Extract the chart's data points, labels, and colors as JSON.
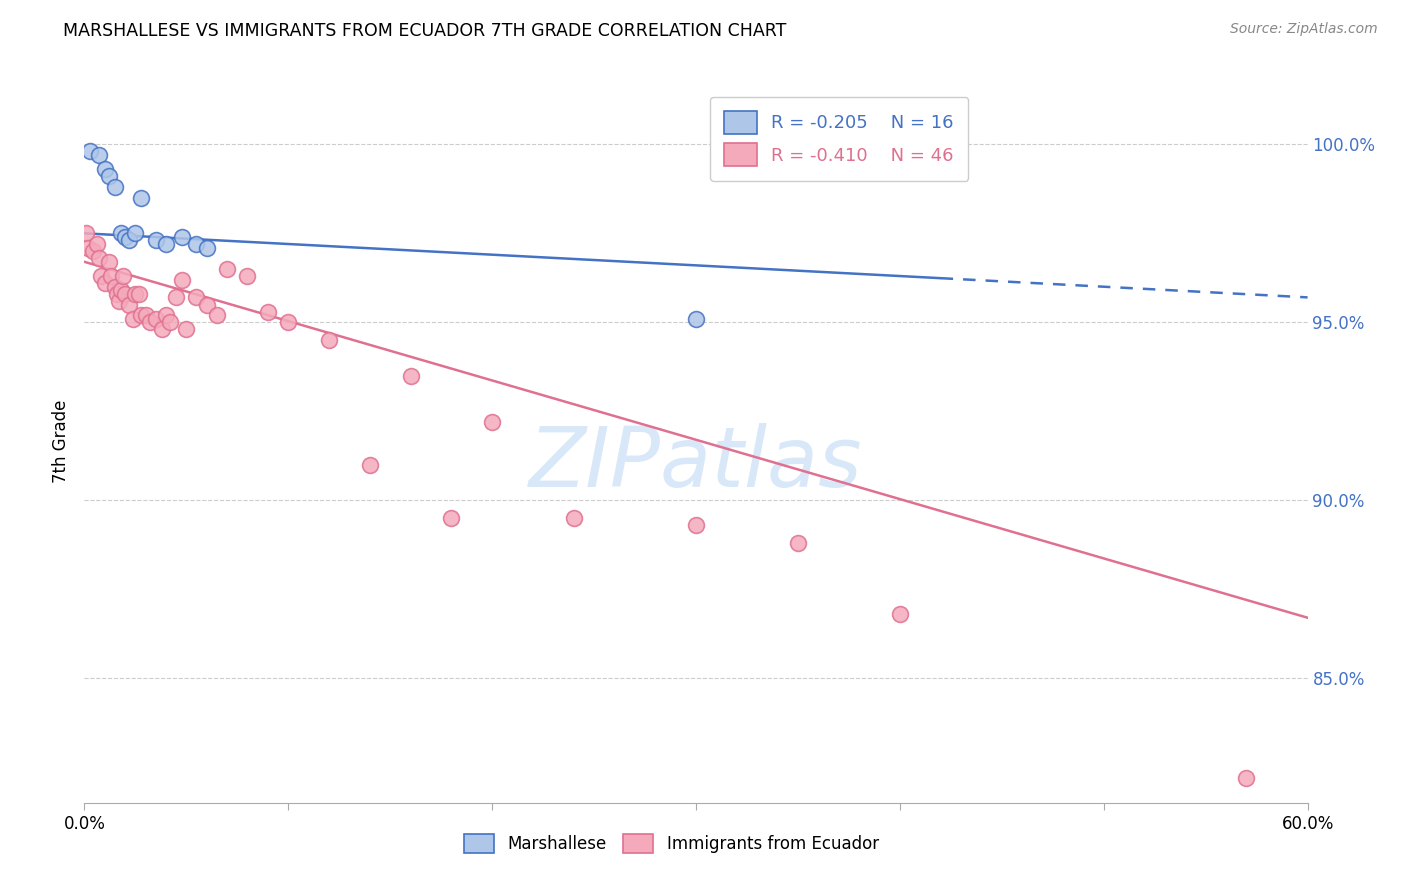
{
  "title": "MARSHALLESE VS IMMIGRANTS FROM ECUADOR 7TH GRADE CORRELATION CHART",
  "source": "Source: ZipAtlas.com",
  "ylabel": "7th Grade",
  "xmin": 0.0,
  "xmax": 0.6,
  "ymin": 0.815,
  "ymax": 1.018,
  "yticks": [
    0.85,
    0.9,
    0.95,
    1.0
  ],
  "ytick_labels": [
    "85.0%",
    "90.0%",
    "95.0%",
    "100.0%"
  ],
  "blue_R": "-0.205",
  "blue_N": "16",
  "pink_R": "-0.410",
  "pink_N": "46",
  "blue_scatter_x": [
    0.003,
    0.007,
    0.01,
    0.012,
    0.015,
    0.018,
    0.02,
    0.022,
    0.025,
    0.028,
    0.035,
    0.04,
    0.048,
    0.055,
    0.06,
    0.3
  ],
  "blue_scatter_y": [
    0.998,
    0.997,
    0.993,
    0.991,
    0.988,
    0.975,
    0.974,
    0.973,
    0.975,
    0.985,
    0.973,
    0.972,
    0.974,
    0.972,
    0.971,
    0.951
  ],
  "blue_line_x": [
    0.0,
    0.6
  ],
  "blue_line_y": [
    0.975,
    0.957
  ],
  "blue_line_solid_end": 0.42,
  "pink_scatter_x": [
    0.001,
    0.002,
    0.004,
    0.006,
    0.007,
    0.008,
    0.01,
    0.012,
    0.013,
    0.015,
    0.016,
    0.017,
    0.018,
    0.019,
    0.02,
    0.022,
    0.024,
    0.025,
    0.027,
    0.028,
    0.03,
    0.032,
    0.035,
    0.038,
    0.04,
    0.042,
    0.045,
    0.048,
    0.05,
    0.055,
    0.06,
    0.065,
    0.07,
    0.08,
    0.09,
    0.1,
    0.12,
    0.14,
    0.16,
    0.18,
    0.2,
    0.24,
    0.3,
    0.35,
    0.4,
    0.57
  ],
  "pink_scatter_y": [
    0.975,
    0.971,
    0.97,
    0.972,
    0.968,
    0.963,
    0.961,
    0.967,
    0.963,
    0.96,
    0.958,
    0.956,
    0.959,
    0.963,
    0.958,
    0.955,
    0.951,
    0.958,
    0.958,
    0.952,
    0.952,
    0.95,
    0.951,
    0.948,
    0.952,
    0.95,
    0.957,
    0.962,
    0.948,
    0.957,
    0.955,
    0.952,
    0.965,
    0.963,
    0.953,
    0.95,
    0.945,
    0.91,
    0.935,
    0.895,
    0.922,
    0.895,
    0.893,
    0.888,
    0.868,
    0.822
  ],
  "pink_line_x": [
    0.0,
    0.6
  ],
  "pink_line_y": [
    0.967,
    0.867
  ],
  "blue_color": "#AEC6E8",
  "pink_color": "#F4AABB",
  "blue_edge_color": "#4472C4",
  "pink_edge_color": "#E07090",
  "blue_line_color": "#4472C4",
  "pink_line_color": "#E07090",
  "watermark_text": "ZIPatlas",
  "watermark_color": "#D8E8F8",
  "background_color": "#FFFFFF",
  "xtick_positions": [
    0.0,
    0.1,
    0.2,
    0.3,
    0.4,
    0.5,
    0.6
  ],
  "xtick_show_labels": [
    true,
    false,
    false,
    false,
    false,
    false,
    true
  ]
}
